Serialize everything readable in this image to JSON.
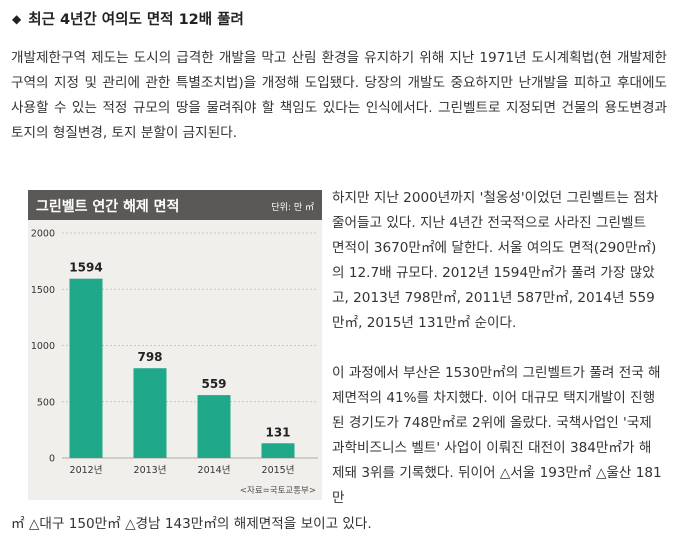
{
  "article": {
    "heading_marker": "◆",
    "heading": "최근 4년간 여의도 면적 12배 풀려",
    "intro": "개발제한구역 제도는 도시의 급격한 개발을 막고 산림 환경을 유지하기 위해 지난 1971년 도시계획법(현 개발제한구역의 지정 및 관리에 관한 특별조치법)을 개정해 도입됐다. 당장의 개발도 중요하지만 난개발을 피하고 후대에도 사용할 수 있는 적정 규모의 땅을 물려줘야 할 책임도 있다는 인식에서다. 그린벨트로 지정되면 건물의 용도변경과 토지의 형질변경, 토지 분할이 금지된다.",
    "para2": "하지만 지난 2000년까지 '철옹성'이었던 그린벨트는 점차 줄어들고 있다. 지난 4년간 전국적으로 사라진 그린벨트 면적이 3670만㎡에 달한다. 서울 여의도 면적(290만㎡)의 12.7배 규모다. 2012년 1594만㎡가 풀려 가장 많았고, 2013년 798만㎡, 2011년 587만㎡, 2014년 559만㎡, 2015년 131만㎡ 순이다.",
    "para3": "이 과정에서 부산은 1530만㎡의 그린벨트가 풀려 전국 해제면적의 41%를 차지했다. 이어 대규모 택지개발이 진행된 경기도가 748만㎡로 2위에 올랐다. 국책사업인 '국제과학비즈니스 벨트' 사업이 이뤄진 대전이 384만㎡가 해제돼 3위를 기록했다. 뒤이어 △서울 193만㎡ △울산 181만",
    "tail": "㎡ △대구 150만㎡ △경남 143만㎡의 해제면적을 보이고 있다."
  },
  "chart": {
    "title": "그린벨트 연간 해제 면적",
    "unit": "단위: 만 ㎡",
    "source": "<자료=국토교통부>",
    "bar_color": "#1fa88a"
  },
  "chart_data": {
    "type": "bar",
    "title": "그린벨트 연간 해제 면적",
    "ylabel": "단위: 만 ㎡",
    "categories": [
      "2012년",
      "2013년",
      "2014년",
      "2015년"
    ],
    "values": [
      1594,
      798,
      559,
      131
    ],
    "ylim": [
      0,
      2000
    ],
    "yticks": [
      0,
      500,
      1000,
      1500,
      2000
    ],
    "grid": true
  }
}
